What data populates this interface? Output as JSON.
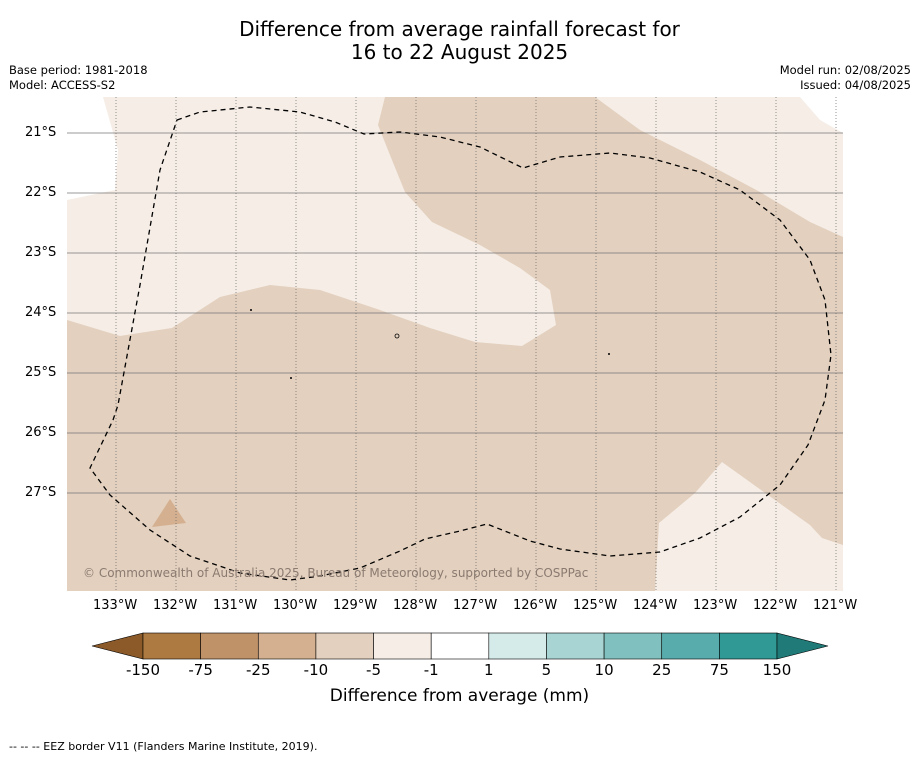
{
  "title_line1": "Difference from average rainfall forecast for",
  "title_line2": "16 to 22 August 2025",
  "base_period": "Base period: 1981-2018",
  "model": "Model: ACCESS-S2",
  "model_run": "Model run: 02/08/2025",
  "issued": "Issued: 04/08/2025",
  "copyright": "© Commonwealth of Australia 2025, Bureau of Meteorology, supported by COSPPac",
  "lat_ticks": [
    "21°S",
    "22°S",
    "23°S",
    "24°S",
    "25°S",
    "26°S",
    "27°S"
  ],
  "lon_ticks": [
    "133°W",
    "132°W",
    "131°W",
    "130°W",
    "129°W",
    "128°W",
    "127°W",
    "126°W",
    "125°W",
    "124°W",
    "123°W",
    "122°W",
    "121°W"
  ],
  "colorbar": {
    "labels": [
      "-150",
      "-75",
      "-25",
      "-10",
      "-5",
      "-1",
      "1",
      "5",
      "10",
      "25",
      "75",
      "150"
    ],
    "colors": [
      "#ad7a42",
      "#c09268",
      "#d4b090",
      "#e3d0be",
      "#f5ede6",
      "#ffffff",
      "#d4ebe9",
      "#a8d4d3",
      "#80c0be",
      "#58acab",
      "#309895"
    ],
    "under_color": "#8c5a28",
    "over_color": "#207a78",
    "title": "Difference from average (mm)"
  },
  "map_colors": {
    "light_dry": "#f5ede6",
    "dry": "#e3d0be",
    "drier": "#d4b090",
    "land": "#ffffff"
  },
  "footnote": "--  --  -- EEZ border V11 (Flanders Marine Institute, 2019)."
}
